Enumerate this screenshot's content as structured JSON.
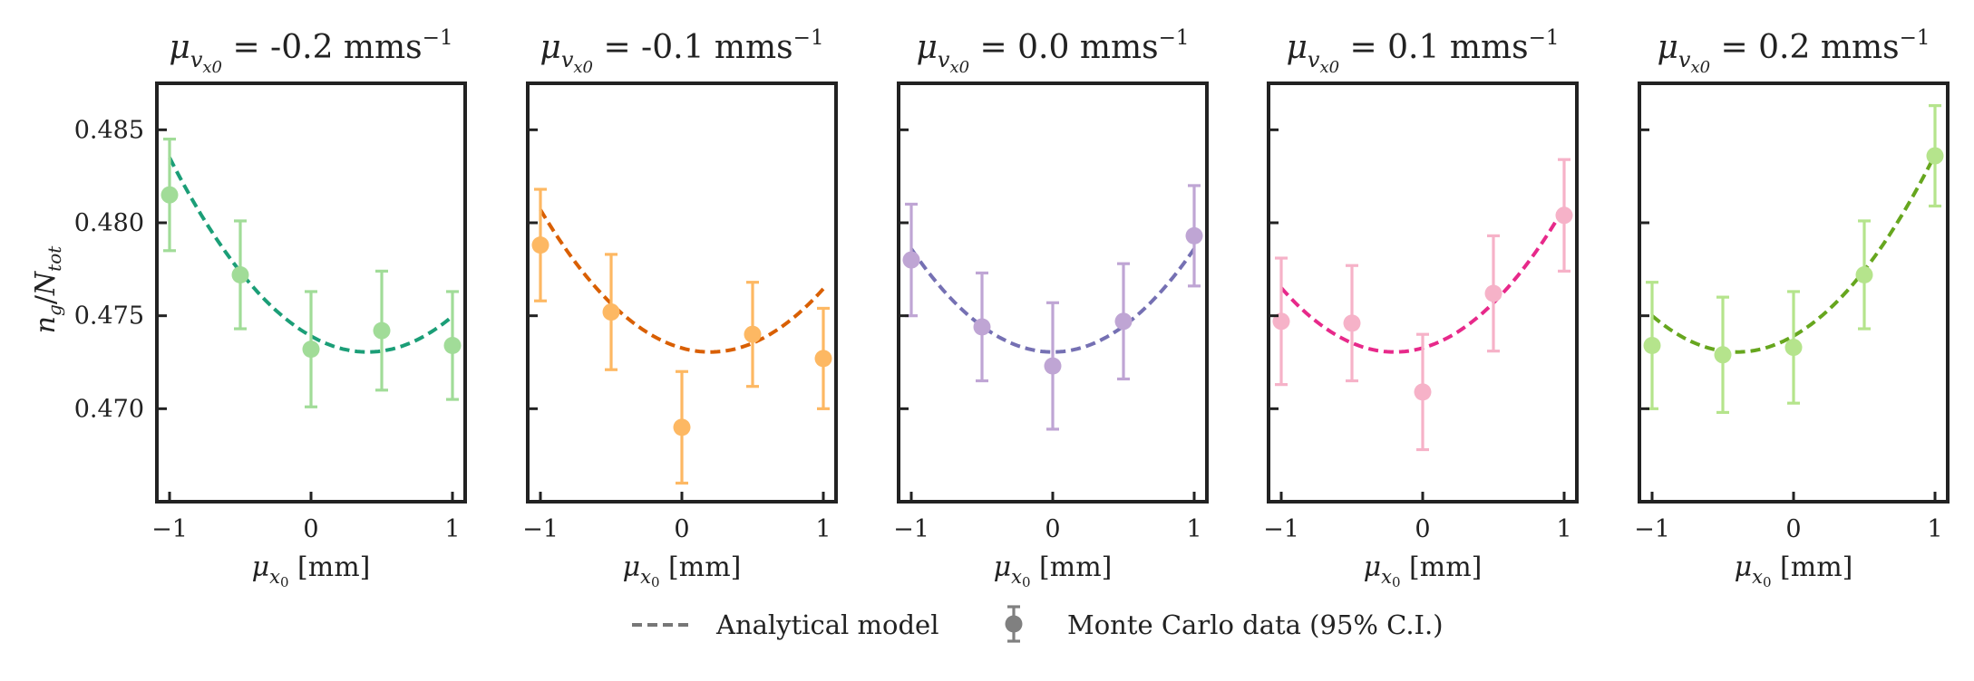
{
  "chart_data": {
    "type": "scatter",
    "ylabel": "n_g/N_tot",
    "ylim": [
      0.465,
      0.4875
    ],
    "xlim": [
      -1.1,
      1.1
    ],
    "xticks": [
      -1,
      0,
      1
    ],
    "xtick_labels": [
      "−1",
      "0",
      "1"
    ],
    "yticks": [
      0.47,
      0.475,
      0.48,
      0.485
    ],
    "ytick_labels": [
      "0.470",
      "0.475",
      "0.480",
      "0.485"
    ],
    "legend": {
      "position": "bottom-center",
      "entries": [
        {
          "label": "Analytical model",
          "marker": "dashed-line",
          "color": "#777777"
        },
        {
          "label": "Monte Carlo data (95% C.I.)",
          "marker": "errorbar-point",
          "color": "#808080"
        }
      ]
    },
    "panels": [
      {
        "title_value": "-0.2",
        "title_unit": "mms",
        "title_exp": "−1",
        "xlabel": "[mm]",
        "line_color": "#1b9e77",
        "point_color": "#a1dc98",
        "model": {
          "vertex_x": 0.4,
          "vertex_y": 0.47305,
          "value_at_x_minus1": 0.4835
        },
        "x": [
          -1,
          -0.5,
          0,
          0.5,
          1
        ],
        "y": [
          0.4815,
          0.4772,
          0.4732,
          0.4742,
          0.4734
        ],
        "ci_half": [
          0.003,
          0.0029,
          0.0031,
          0.0032,
          0.0029
        ]
      },
      {
        "title_value": "-0.1",
        "title_unit": "mms",
        "title_exp": "−1",
        "xlabel": "[mm]",
        "line_color": "#d95f02",
        "point_color": "#fdb863",
        "model": {
          "vertex_x": 0.2,
          "vertex_y": 0.47305,
          "value_at_x_minus1": 0.4807
        },
        "x": [
          -1,
          -0.5,
          0,
          0.5,
          1
        ],
        "y": [
          0.4788,
          0.4752,
          0.469,
          0.474,
          0.4727
        ],
        "ci_half": [
          0.003,
          0.0031,
          0.003,
          0.0028,
          0.0027
        ]
      },
      {
        "title_value": "0.0",
        "title_unit": "mms",
        "title_exp": "−1",
        "xlabel": "[mm]",
        "line_color": "#7570b3",
        "point_color": "#bfa5d4",
        "model": {
          "vertex_x": 0.0,
          "vertex_y": 0.47305,
          "value_at_x_minus1": 0.4786
        },
        "x": [
          -1,
          -0.5,
          0,
          0.5,
          1
        ],
        "y": [
          0.478,
          0.4744,
          0.4723,
          0.4747,
          0.4793
        ],
        "ci_half": [
          0.003,
          0.0029,
          0.0034,
          0.0031,
          0.0027
        ]
      },
      {
        "title_value": "0.1",
        "title_unit": "mms",
        "title_exp": "−1",
        "xlabel": "[mm]",
        "line_color": "#e7298a",
        "point_color": "#f6b2c8",
        "model": {
          "vertex_x": -0.2,
          "vertex_y": 0.47305,
          "value_at_x_minus1": 0.4765
        },
        "x": [
          -1,
          -0.5,
          0,
          0.5,
          1
        ],
        "y": [
          0.4747,
          0.4746,
          0.4709,
          0.4762,
          0.4804
        ],
        "ci_half": [
          0.0034,
          0.0031,
          0.0031,
          0.0031,
          0.003
        ]
      },
      {
        "title_value": "0.2",
        "title_unit": "mms",
        "title_exp": "−1",
        "xlabel": "[mm]",
        "line_color": "#66a61e",
        "point_color": "#b5e48c",
        "model": {
          "vertex_x": -0.4,
          "vertex_y": 0.47305,
          "value_at_x_minus1": 0.475
        },
        "x": [
          -1,
          -0.5,
          0,
          0.5,
          1
        ],
        "y": [
          0.4734,
          0.4729,
          0.4733,
          0.4772,
          0.4836
        ],
        "ci_half": [
          0.0034,
          0.0031,
          0.003,
          0.0029,
          0.0027
        ]
      }
    ]
  }
}
